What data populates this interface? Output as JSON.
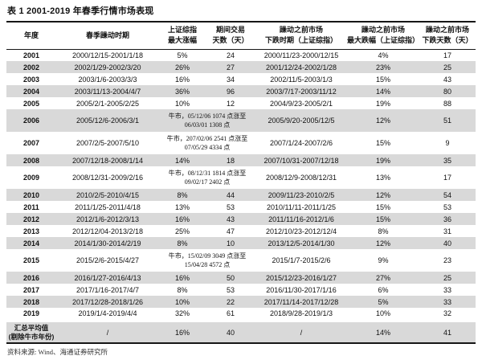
{
  "title": "表 1 2001-2019 年春季行情市场表现",
  "colors": {
    "stripe": "#d9d9d9",
    "rule": "#161616",
    "text": "#111111"
  },
  "table": {
    "headers": [
      {
        "line1": "年度",
        "line2": ""
      },
      {
        "line1": "春季躁动时期",
        "line2": ""
      },
      {
        "line1": "上证综指",
        "line2": "最大涨幅"
      },
      {
        "line1": "期间交易",
        "line2": "天数（天）"
      },
      {
        "line1": "躁动之前市场",
        "line2": "下跌时期（上证综指）"
      },
      {
        "line1": "躁动之前市场",
        "line2": "最大跌幅（上证综指）"
      },
      {
        "line1": "躁动之前市场",
        "line2": "下跌天数（天）"
      }
    ],
    "rows": [
      {
        "year": "2001",
        "period": "2000/12/15-2001/1/18",
        "gain": "5%",
        "days": "24",
        "decline_period": "2000/11/23-2000/12/15",
        "decline": "4%",
        "decline_days": "17"
      },
      {
        "year": "2002",
        "period": "2002/1/29-2002/3/20",
        "gain": "26%",
        "days": "27",
        "decline_period": "2001/12/24-2002/1/28",
        "decline": "23%",
        "decline_days": "25"
      },
      {
        "year": "2003",
        "period": "2003/1/6-2003/3/3",
        "gain": "16%",
        "days": "34",
        "decline_period": "2002/11/5-2003/1/3",
        "decline": "15%",
        "decline_days": "43"
      },
      {
        "year": "2004",
        "period": "2003/11/13-2004/4/7",
        "gain": "36%",
        "days": "96",
        "decline_period": "2003/7/17-2003/11/12",
        "decline": "14%",
        "decline_days": "80"
      },
      {
        "year": "2005",
        "period": "2005/2/1-2005/2/25",
        "gain": "10%",
        "days": "12",
        "decline_period": "2004/9/23-2005/2/1",
        "decline": "19%",
        "decline_days": "88"
      },
      {
        "year": "2006",
        "period": "2005/12/6-2006/3/1",
        "special": "牛市，05/12/06 1074 点涨至 06/03/01 1308 点",
        "decline_period": "2005/9/20-2005/12/5",
        "decline": "12%",
        "decline_days": "51"
      },
      {
        "year": "2007",
        "period": "2007/2/5-2007/5/10",
        "special": "牛市，207/02/06 2541 点涨至 07/05/29 4334 点",
        "decline_period": "2007/1/24-2007/2/6",
        "decline": "15%",
        "decline_days": "9"
      },
      {
        "year": "2008",
        "period": "2007/12/18-2008/1/14",
        "gain": "14%",
        "days": "18",
        "decline_period": "2007/10/31-2007/12/18",
        "decline": "19%",
        "decline_days": "35"
      },
      {
        "year": "2009",
        "period": "2008/12/31-2009/2/16",
        "special": "牛市，08/12/31 1814 点涨至 09/02/17 2402 点",
        "decline_period": "2008/12/9-2008/12/31",
        "decline": "13%",
        "decline_days": "17"
      },
      {
        "year": "2010",
        "period": "2010/2/5-2010/4/15",
        "gain": "8%",
        "days": "44",
        "decline_period": "2009/11/23-2010/2/5",
        "decline": "12%",
        "decline_days": "54"
      },
      {
        "year": "2011",
        "period": "2011/1/25-2011/4/18",
        "gain": "13%",
        "days": "53",
        "decline_period": "2010/11/11-2011/1/25",
        "decline": "15%",
        "decline_days": "53"
      },
      {
        "year": "2012",
        "period": "2012/1/6-2012/3/13",
        "gain": "16%",
        "days": "43",
        "decline_period": "2011/11/16-2012/1/6",
        "decline": "15%",
        "decline_days": "36"
      },
      {
        "year": "2013",
        "period": "2012/12/04-2013/2/18",
        "gain": "25%",
        "days": "47",
        "decline_period": "2012/10/23-2012/12/4",
        "decline": "8%",
        "decline_days": "31"
      },
      {
        "year": "2014",
        "period": "2014/1/30-2014/2/19",
        "gain": "8%",
        "days": "10",
        "decline_period": "2013/12/5-2014/1/30",
        "decline": "12%",
        "decline_days": "40"
      },
      {
        "year": "2015",
        "period": "2015/2/6-2015/4/27",
        "special": "牛市，15/02/09 3049 点涨至 15/04/28 4572 点",
        "decline_period": "2015/1/7-2015/2/6",
        "decline": "9%",
        "decline_days": "23"
      },
      {
        "year": "2016",
        "period": "2016/1/27-2016/4/13",
        "gain": "16%",
        "days": "50",
        "decline_period": "2015/12/23-2016/1/27",
        "decline": "27%",
        "decline_days": "25"
      },
      {
        "year": "2017",
        "period": "2017/1/16-2017/4/7",
        "gain": "8%",
        "days": "53",
        "decline_period": "2016/11/30-2017/1/16",
        "decline": "6%",
        "decline_days": "33"
      },
      {
        "year": "2018",
        "period": "2017/12/28-2018/1/26",
        "gain": "10%",
        "days": "22",
        "decline_period": "2017/11/14-2017/12/28",
        "decline": "5%",
        "decline_days": "33"
      },
      {
        "year": "2019",
        "period": "2019/1/4-2019/4/4",
        "gain": "32%",
        "days": "61",
        "decline_period": "2018/9/28-2019/1/3",
        "decline": "10%",
        "decline_days": "32"
      }
    ],
    "summary": {
      "label_line1": "汇总平均值",
      "label_line2": "(剔除牛市年份)",
      "period": "/",
      "gain": "16%",
      "days": "40",
      "decline_period": "/",
      "decline": "14%",
      "decline_days": "41"
    }
  },
  "footer": {
    "source": "资料来源: Wind、海通证券研究所"
  }
}
